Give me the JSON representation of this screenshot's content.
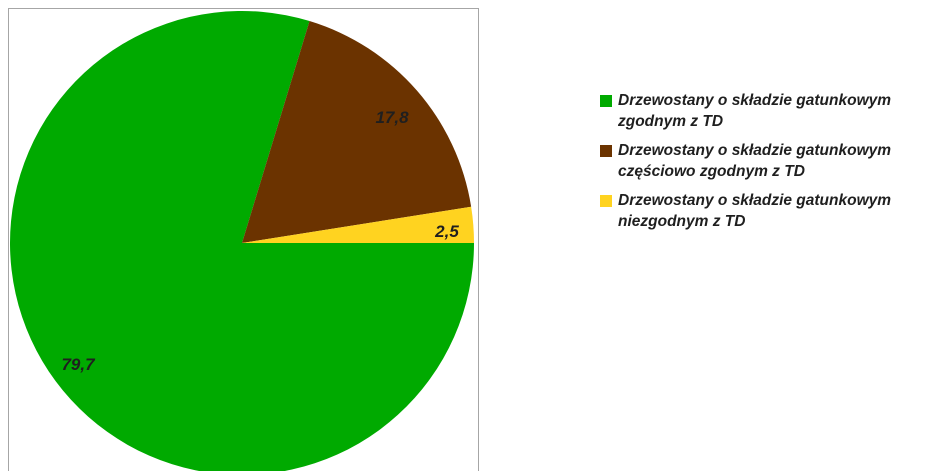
{
  "chart_data": {
    "type": "pie",
    "categories": [
      "Drzewostany o składzie gatunkowym zgodnym z TD",
      "Drzewostany o składzie gatunkowym częściowo zgodnym z TD",
      "Drzewostany o składzie gatunkowym niezgodnym z TD"
    ],
    "values": [
      79.7,
      17.8,
      2.5
    ],
    "data_labels": [
      "79,7",
      "17,8",
      "2,5"
    ],
    "colors": [
      "#00aa00",
      "#6b3300",
      "#ffd320"
    ],
    "legend_placement": "right",
    "title": ""
  },
  "legend": {
    "items": [
      {
        "label": "Drzewostany o składzie gatunkowym\nzgodnym z TD",
        "color": "#00aa00"
      },
      {
        "label": "Drzewostany o składzie gatunkowym\nczęściowo zgodnym z TD",
        "color": "#6b3300"
      },
      {
        "label": "Drzewostany o składzie gatunkowym\nniezgodnym z TD",
        "color": "#ffd320"
      }
    ]
  }
}
